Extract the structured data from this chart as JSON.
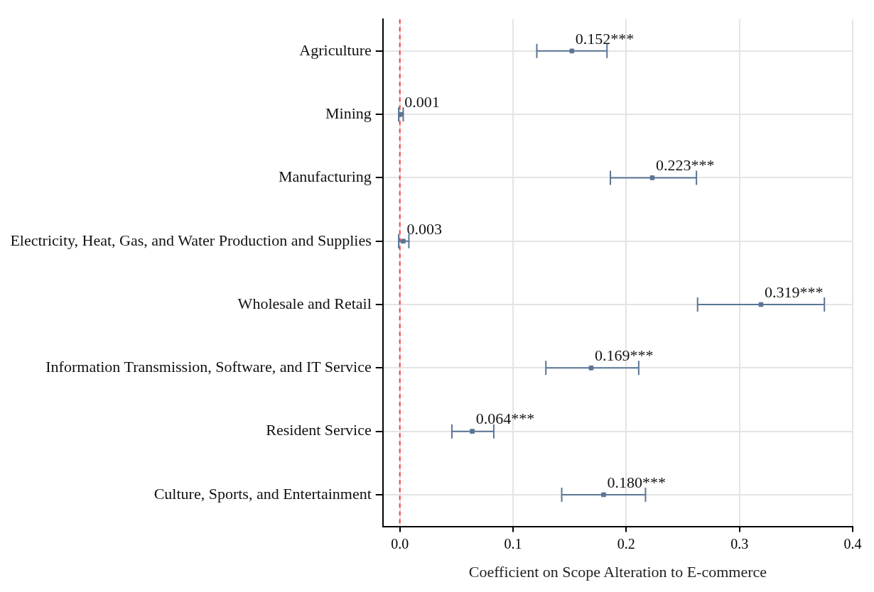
{
  "chart_data": {
    "type": "scatter",
    "orientation": "horizontal",
    "xlabel": "Coefficient on Scope Alteration to E-commerce",
    "categories": [
      "Agriculture",
      "Mining",
      "Manufacturing",
      "Electricity, Heat, Gas, and Water Production and Supplies",
      "Wholesale and Retail",
      "Information Transmission, Software, and IT Service",
      "Resident Service",
      "Culture, Sports, and Entertainment"
    ],
    "values": [
      0.152,
      0.001,
      0.223,
      0.003,
      0.319,
      0.169,
      0.064,
      0.18
    ],
    "errors": [
      [
        0.121,
        0.183
      ],
      [
        -0.001,
        0.003
      ],
      [
        0.186,
        0.262
      ],
      [
        -0.001,
        0.008
      ],
      [
        0.263,
        0.375
      ],
      [
        0.129,
        0.211
      ],
      [
        0.046,
        0.083
      ],
      [
        0.143,
        0.217
      ]
    ],
    "value_labels": [
      "0.152***",
      "0.001",
      "0.223***",
      "0.003",
      "0.319***",
      "0.169***",
      "0.064***",
      "0.180***"
    ],
    "color": "#5a7594",
    "marker": "square",
    "xlim": [
      -0.015,
      0.4
    ],
    "xticks": [
      {
        "value": 0,
        "label": "0.0"
      },
      {
        "value": 0.1,
        "label": "0.1"
      },
      {
        "value": 0.2,
        "label": "0.2"
      },
      {
        "value": 0.3,
        "label": "0.3"
      },
      {
        "value": 0.4,
        "label": "0.4"
      }
    ],
    "ref_lines": [
      {
        "axis": "x",
        "value": 0,
        "color": "#ff3b3b",
        "line_style": "dashed"
      }
    ],
    "grid": true
  }
}
